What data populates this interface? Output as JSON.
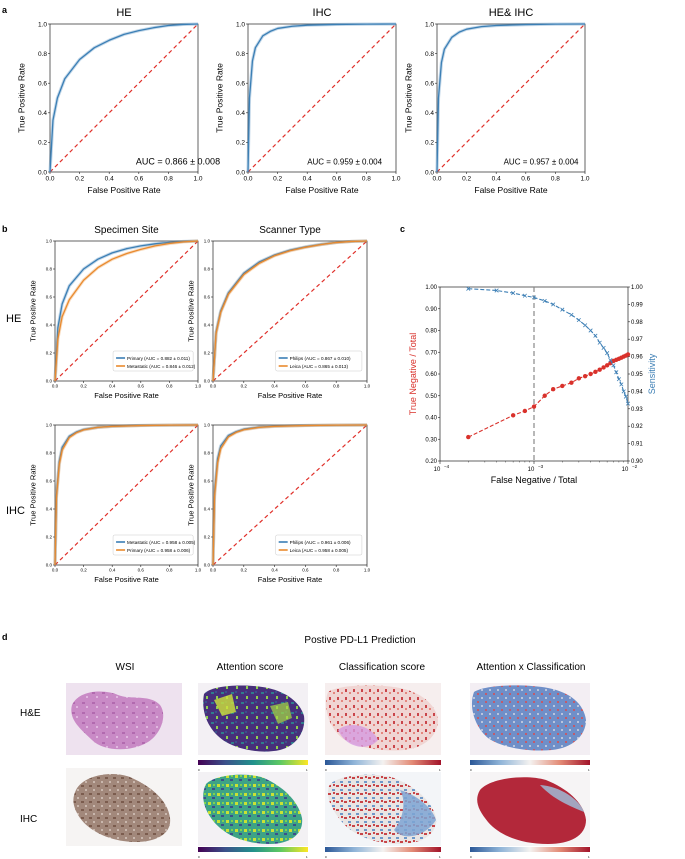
{
  "panel_labels": {
    "a": "a",
    "b": "b",
    "c": "c",
    "d": "d"
  },
  "common": {
    "xlabel": "False Positive Rate",
    "ylabel": "True Positive Rate",
    "ticks": [
      "0.0",
      "0.2",
      "0.4",
      "0.6",
      "0.8",
      "1.0"
    ],
    "curve_color": "#3b7fb5",
    "orange_color": "#e98a2e",
    "diag_color": "#e0302a"
  },
  "row_labels": {
    "he": "HE",
    "ihc": "IHC"
  },
  "chart_data": [
    {
      "id": "a1",
      "type": "line",
      "title": "HE",
      "xlabel": "False Positive Rate",
      "ylabel": "True Positive Rate",
      "xlim": [
        0,
        1
      ],
      "ylim": [
        0,
        1
      ],
      "annotation": "AUC = 0.866 ± 0.008",
      "series": [
        {
          "name": "HE",
          "x": [
            0,
            0.02,
            0.05,
            0.1,
            0.2,
            0.3,
            0.4,
            0.5,
            0.6,
            0.7,
            0.8,
            0.9,
            1.0
          ],
          "y": [
            0,
            0.35,
            0.5,
            0.63,
            0.76,
            0.84,
            0.89,
            0.93,
            0.955,
            0.975,
            0.99,
            0.997,
            1.0
          ]
        }
      ]
    },
    {
      "id": "a2",
      "type": "line",
      "title": "IHC",
      "xlabel": "False Positive Rate",
      "ylabel": "True Positive Rate",
      "xlim": [
        0,
        1
      ],
      "ylim": [
        0,
        1
      ],
      "annotation": "AUC = 0.959 ± 0.004",
      "series": [
        {
          "name": "IHC",
          "x": [
            0,
            0.01,
            0.03,
            0.05,
            0.1,
            0.15,
            0.2,
            0.3,
            0.4,
            0.6,
            0.8,
            1.0
          ],
          "y": [
            0,
            0.5,
            0.75,
            0.84,
            0.92,
            0.95,
            0.97,
            0.985,
            0.992,
            0.997,
            0.999,
            1.0
          ]
        }
      ]
    },
    {
      "id": "a3",
      "type": "line",
      "title": "HE& IHC",
      "xlabel": "False Positive Rate",
      "ylabel": "True Positive Rate",
      "xlim": [
        0,
        1
      ],
      "ylim": [
        0,
        1
      ],
      "annotation": "AUC = 0.957 ± 0.004",
      "series": [
        {
          "name": "HE& IHC",
          "x": [
            0,
            0.01,
            0.03,
            0.05,
            0.1,
            0.15,
            0.2,
            0.3,
            0.4,
            0.6,
            0.8,
            1.0
          ],
          "y": [
            0,
            0.5,
            0.74,
            0.83,
            0.91,
            0.945,
            0.965,
            0.982,
            0.99,
            0.996,
            0.999,
            1.0
          ]
        }
      ]
    },
    {
      "id": "b1",
      "type": "line",
      "title": "Specimen Site",
      "xlabel": "False Positive Rate",
      "ylabel": "True Positive Rate",
      "xlim": [
        0,
        1
      ],
      "ylim": [
        0,
        1
      ],
      "series": [
        {
          "name": "Primary (AUC = 0.882 ± 0.011)",
          "x": [
            0,
            0.02,
            0.05,
            0.1,
            0.2,
            0.3,
            0.4,
            0.5,
            0.6,
            0.7,
            0.8,
            0.9,
            1.0
          ],
          "y": [
            0,
            0.38,
            0.55,
            0.68,
            0.8,
            0.87,
            0.915,
            0.945,
            0.965,
            0.98,
            0.99,
            0.997,
            1.0
          ]
        },
        {
          "name": "Metastatic (AUC = 0.846 ± 0.012)",
          "x": [
            0,
            0.02,
            0.05,
            0.1,
            0.2,
            0.3,
            0.4,
            0.5,
            0.6,
            0.7,
            0.8,
            0.9,
            1.0
          ],
          "y": [
            0,
            0.3,
            0.46,
            0.58,
            0.72,
            0.81,
            0.87,
            0.91,
            0.94,
            0.965,
            0.982,
            0.994,
            1.0
          ]
        }
      ]
    },
    {
      "id": "b2",
      "type": "line",
      "title": "Scanner Type",
      "xlabel": "False Positive Rate",
      "ylabel": "True Positive Rate",
      "xlim": [
        0,
        1
      ],
      "ylim": [
        0,
        1
      ],
      "series": [
        {
          "name": "Philips (AUC = 0.867 ± 0.010)",
          "x": [
            0,
            0.02,
            0.05,
            0.1,
            0.2,
            0.3,
            0.4,
            0.5,
            0.6,
            0.7,
            0.8,
            0.9,
            1.0
          ],
          "y": [
            0,
            0.35,
            0.5,
            0.63,
            0.77,
            0.85,
            0.9,
            0.935,
            0.958,
            0.976,
            0.99,
            0.997,
            1.0
          ]
        },
        {
          "name": "Leica (AUC = 0.865 ± 0.013)",
          "x": [
            0,
            0.02,
            0.05,
            0.1,
            0.2,
            0.3,
            0.4,
            0.5,
            0.6,
            0.7,
            0.8,
            0.9,
            1.0
          ],
          "y": [
            0,
            0.34,
            0.49,
            0.62,
            0.76,
            0.84,
            0.895,
            0.93,
            0.955,
            0.974,
            0.989,
            0.997,
            1.0
          ]
        }
      ]
    },
    {
      "id": "b3",
      "type": "line",
      "title": "",
      "xlabel": "False Positive Rate",
      "ylabel": "True Positive Rate",
      "xlim": [
        0,
        1
      ],
      "ylim": [
        0,
        1
      ],
      "series": [
        {
          "name": "Metastatic (AUC = 0.958 ± 0.005)",
          "x": [
            0,
            0.01,
            0.03,
            0.05,
            0.1,
            0.15,
            0.2,
            0.3,
            0.4,
            0.6,
            0.8,
            1.0
          ],
          "y": [
            0,
            0.5,
            0.74,
            0.84,
            0.92,
            0.95,
            0.968,
            0.984,
            0.991,
            0.997,
            0.999,
            1.0
          ]
        },
        {
          "name": "Primary (AUC = 0.958 ± 0.006)",
          "x": [
            0,
            0.01,
            0.03,
            0.05,
            0.1,
            0.15,
            0.2,
            0.3,
            0.4,
            0.6,
            0.8,
            1.0
          ],
          "y": [
            0,
            0.48,
            0.72,
            0.82,
            0.91,
            0.945,
            0.965,
            0.983,
            0.99,
            0.996,
            0.999,
            1.0
          ]
        }
      ]
    },
    {
      "id": "b4",
      "type": "line",
      "title": "",
      "xlabel": "False Positive Rate",
      "ylabel": "True Positive Rate",
      "xlim": [
        0,
        1
      ],
      "ylim": [
        0,
        1
      ],
      "series": [
        {
          "name": "Philips (AUC = 0.961 ± 0.006)",
          "x": [
            0,
            0.01,
            0.03,
            0.05,
            0.1,
            0.15,
            0.2,
            0.3,
            0.4,
            0.6,
            0.8,
            1.0
          ],
          "y": [
            0,
            0.52,
            0.76,
            0.85,
            0.925,
            0.952,
            0.97,
            0.985,
            0.992,
            0.997,
            0.999,
            1.0
          ]
        },
        {
          "name": "Leica (AUC = 0.958 ± 0.005)",
          "x": [
            0,
            0.01,
            0.03,
            0.05,
            0.1,
            0.15,
            0.2,
            0.3,
            0.4,
            0.6,
            0.8,
            1.0
          ],
          "y": [
            0,
            0.49,
            0.73,
            0.83,
            0.915,
            0.947,
            0.966,
            0.983,
            0.99,
            0.996,
            0.999,
            1.0
          ]
        }
      ]
    },
    {
      "id": "c",
      "type": "line",
      "xlabel": "False Negative / Total",
      "ylabel_left": "True Negative / Total",
      "ylabel_right": "Sensitivity",
      "x_scale": "log",
      "xlim": [
        0.0001,
        0.01
      ],
      "ylim_left": [
        0.2,
        1.0
      ],
      "ylim_right": [
        0.9,
        1.0
      ],
      "x_ticks": [
        "10",
        "10",
        "10"
      ],
      "x_tick_exponents": [
        "−4",
        "−3",
        "−2"
      ],
      "y_ticks_left": [
        "0.20",
        "0.30",
        "0.40",
        "0.50",
        "0.60",
        "0.70",
        "0.80",
        "0.90",
        "1.00"
      ],
      "y_ticks_right": [
        "0.90",
        "0.91",
        "0.92",
        "0.93",
        "0.94",
        "0.95",
        "0.96",
        "0.97",
        "0.98",
        "0.99",
        "1.00"
      ],
      "vline_x": 0.001,
      "series": [
        {
          "name": "True Negative / Total",
          "axis": "left",
          "color": "#d9312b",
          "x": [
            0.0002,
            0.0006,
            0.0008,
            0.001,
            0.0013,
            0.0016,
            0.002,
            0.0025,
            0.003,
            0.0035,
            0.004,
            0.0045,
            0.005,
            0.0055,
            0.006,
            0.0065,
            0.007,
            0.0075,
            0.008,
            0.0085,
            0.009,
            0.0095,
            0.01
          ],
          "y": [
            0.31,
            0.41,
            0.43,
            0.45,
            0.5,
            0.53,
            0.545,
            0.56,
            0.58,
            0.59,
            0.6,
            0.61,
            0.62,
            0.63,
            0.64,
            0.65,
            0.66,
            0.665,
            0.67,
            0.675,
            0.68,
            0.685,
            0.69
          ]
        },
        {
          "name": "Sensitivity",
          "axis": "right",
          "color": "#3d7fb5",
          "x": [
            0.0002,
            0.0004,
            0.0006,
            0.0008,
            0.001,
            0.0013,
            0.0016,
            0.002,
            0.0025,
            0.003,
            0.0035,
            0.004,
            0.0045,
            0.005,
            0.0055,
            0.006,
            0.0065,
            0.007,
            0.0075,
            0.008,
            0.0085,
            0.009,
            0.0095,
            0.01
          ],
          "y": [
            0.999,
            0.998,
            0.9965,
            0.995,
            0.994,
            0.992,
            0.99,
            0.987,
            0.984,
            0.981,
            0.978,
            0.975,
            0.972,
            0.968,
            0.965,
            0.962,
            0.958,
            0.955,
            0.951,
            0.947,
            0.944,
            0.94,
            0.937,
            0.933
          ]
        }
      ]
    }
  ],
  "panel_d": {
    "title": "Postive PD-L1 Prediction",
    "columns": [
      "WSI",
      "Attention score",
      "Classification score",
      "Attention x Classification"
    ],
    "rows": [
      "H&E",
      "IHC"
    ],
    "colorbar_min": "0",
    "colorbar_max": "1",
    "colors": {
      "he_tissue": "#c77dc1",
      "he_bg": "#e9d9ec",
      "ihc_tissue": "#9b7a6b",
      "viridis_dark": "#3c1f66",
      "viridis_mid": "#3b8a8c",
      "viridis_light": "#cde434",
      "red": "#b8262e",
      "blue": "#5e86c2"
    }
  }
}
